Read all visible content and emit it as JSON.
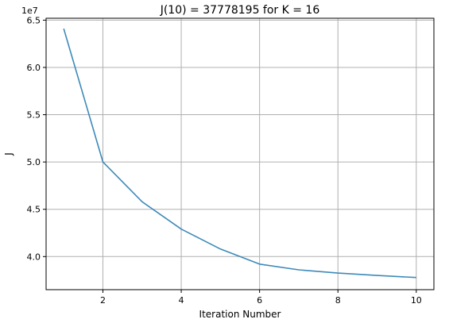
{
  "chart_data": {
    "type": "line",
    "title": "J(10) = 37778195 for K = 16",
    "xlabel": "Iteration Number",
    "ylabel": "J",
    "y_offset_label": "1e7",
    "xlim": [
      0.55,
      10.45
    ],
    "ylim": [
      3.65,
      6.52
    ],
    "x_ticks": [
      2,
      4,
      6,
      8,
      10
    ],
    "x_tick_labels": [
      "2",
      "4",
      "6",
      "8",
      "10"
    ],
    "y_ticks": [
      4.0,
      4.5,
      5.0,
      5.5,
      6.0,
      6.5
    ],
    "y_tick_labels": [
      "4.0",
      "4.5",
      "5.0",
      "5.5",
      "6.0",
      "6.5"
    ],
    "grid": true,
    "series": [
      {
        "color": "#3d8ab9",
        "x": [
          1,
          2,
          3,
          4,
          5,
          6,
          7,
          8,
          9,
          10
        ],
        "y": [
          6.41,
          5.0,
          4.58,
          4.29,
          4.08,
          3.92,
          3.86,
          3.825,
          3.8,
          3.778
        ]
      }
    ]
  }
}
